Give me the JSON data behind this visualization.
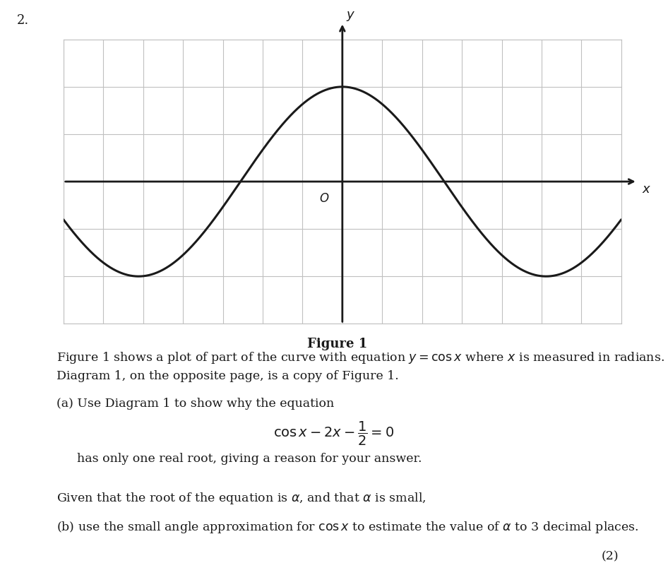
{
  "question_number": "2.",
  "figure_label": "Figure 1",
  "x_range_min": -4.3,
  "x_range_max": 4.3,
  "y_range_min": -1.5,
  "y_range_max": 1.5,
  "grid_rows": 6,
  "grid_cols": 14,
  "plot_bg": "#ffffff",
  "curve_color": "#1a1a1a",
  "curve_linewidth": 2.2,
  "axis_linewidth": 2.0,
  "grid_color": "#c0c0c0",
  "grid_linewidth": 0.8,
  "origin_label": "O",
  "x_label": "x",
  "y_label": "y",
  "figure_label_fontsize": 13,
  "figure_label_bold": true,
  "body_fontsize": 13,
  "text_color": "#1a1a1a",
  "paragraph1": "Figure 1 shows a plot of part of the curve with equation $y = \\cos x$ where $x$ is measured in radians.",
  "paragraph2": "Diagram 1, on the opposite page, is a copy of Figure 1.",
  "part_a_intro": "(a) Use Diagram 1 to show why the equation",
  "equation_line1": "$\\cos x - 2x - \\dfrac{1}{2} = 0$",
  "part_a_end": "has only one real root, giving a reason for your answer.",
  "part_b_intro": "Given that the root of the equation is $\\alpha$, and that $\\alpha$ is small,",
  "part_b": "(b) use the small angle approximation for $\\cos x$ to estimate the value of $\\alpha$ to 3 decimal places.",
  "marks": "(2)"
}
